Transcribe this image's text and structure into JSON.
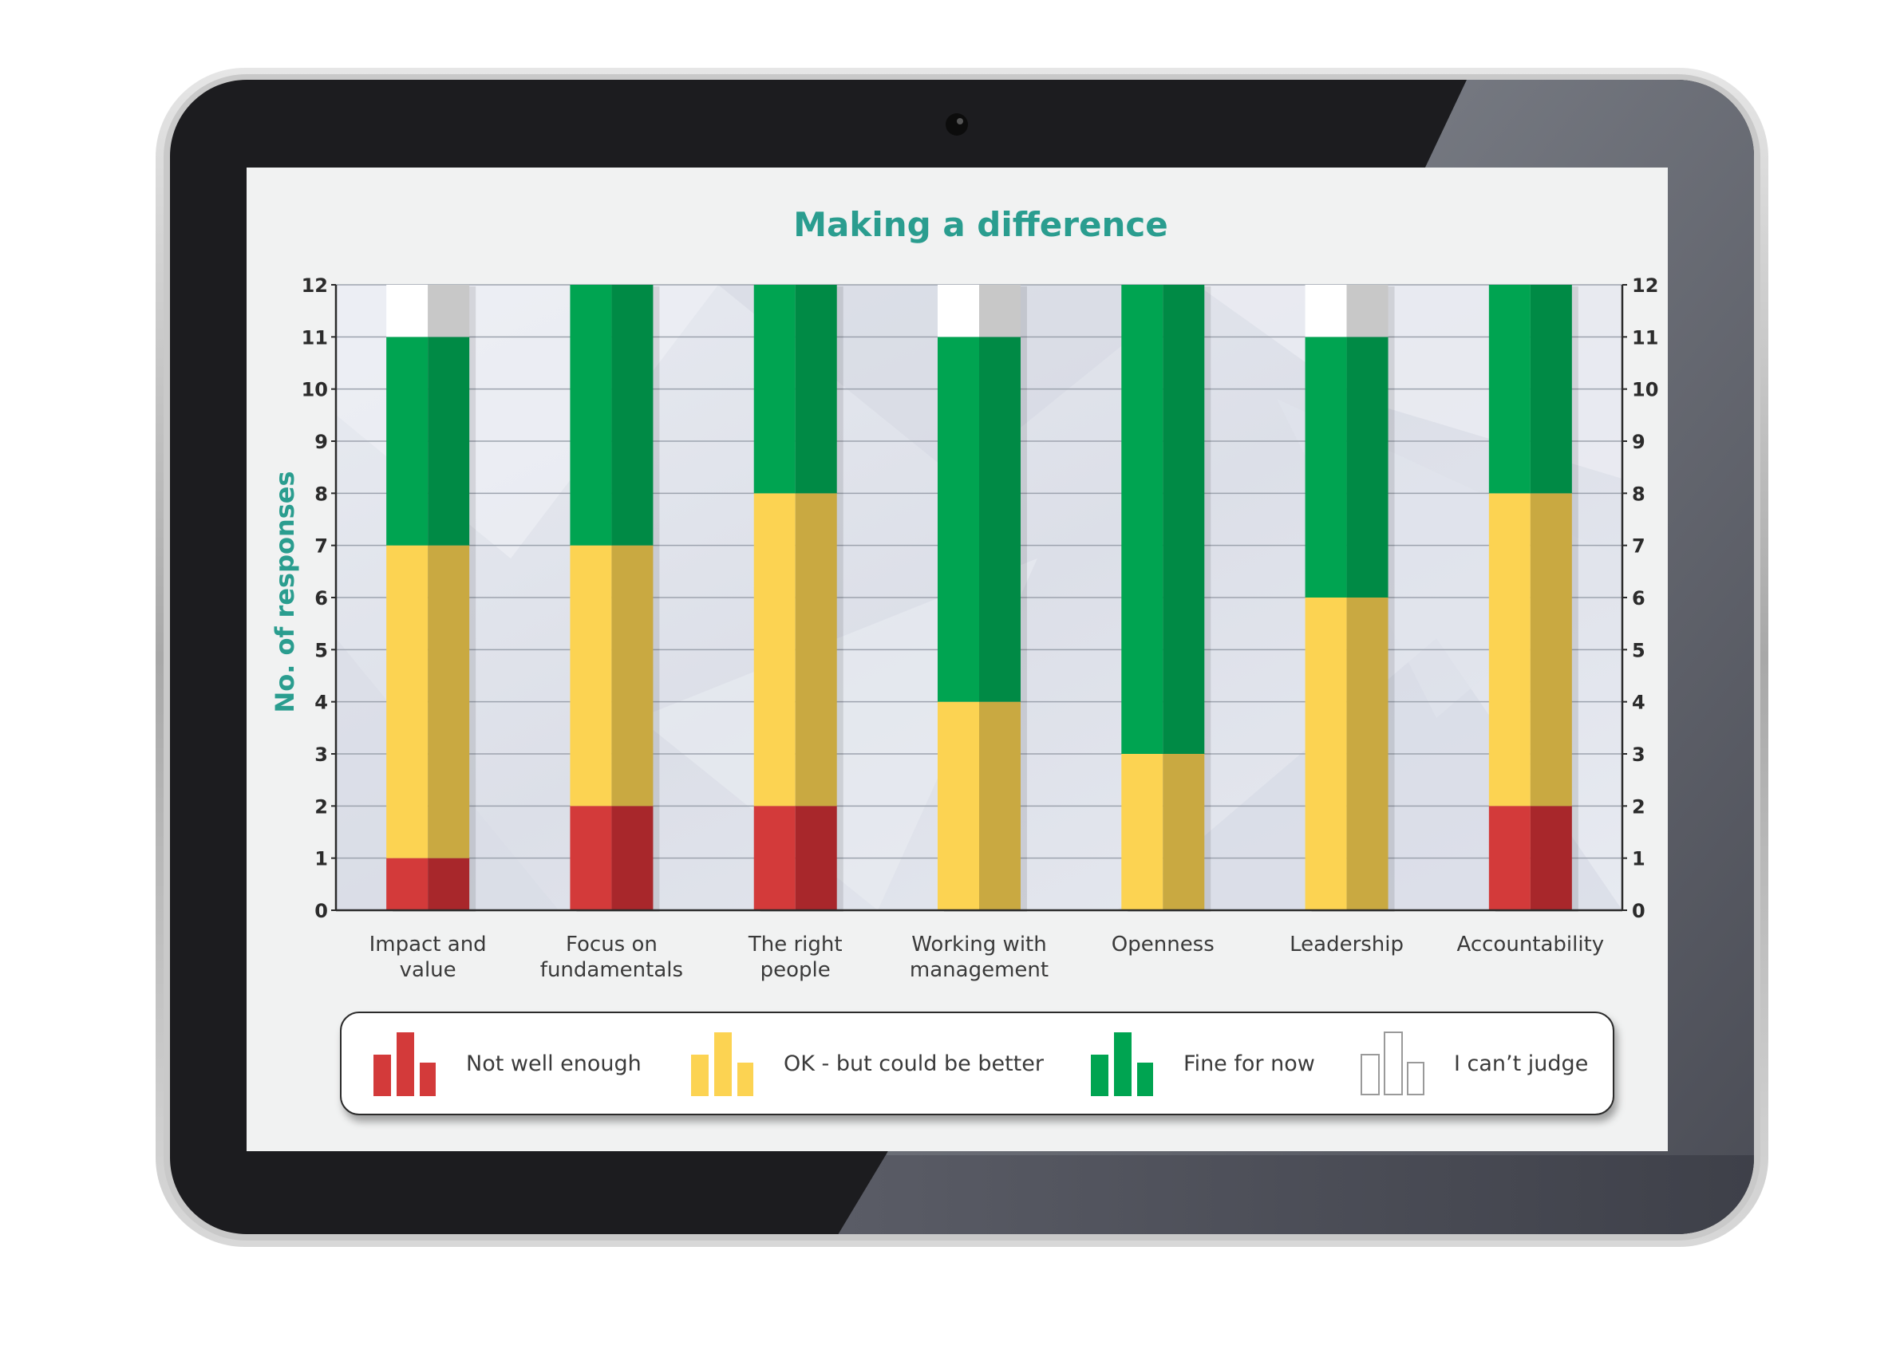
{
  "chart_data": {
    "type": "bar",
    "stacked": true,
    "title": "Making a difference",
    "ylabel": "No. of responses",
    "xlabel": "",
    "ylim": [
      0,
      12
    ],
    "yticks": [
      "0",
      "1",
      "2",
      "3",
      "4",
      "5",
      "6",
      "7",
      "8",
      "9",
      "10",
      "11",
      "12"
    ],
    "categories": [
      [
        "Impact and",
        "value"
      ],
      [
        "Focus on",
        "fundamentals"
      ],
      [
        "The right",
        "people"
      ],
      [
        "Working with",
        "management"
      ],
      [
        "Openness"
      ],
      [
        "Leadership"
      ],
      [
        "Accountability"
      ]
    ],
    "series": [
      {
        "name": "Not well enough",
        "values": [
          1,
          2,
          2,
          0,
          0,
          0,
          2
        ],
        "color": "#d33a3a",
        "shade": "#a8272b"
      },
      {
        "name": "OK - but could be better",
        "values": [
          6,
          5,
          6,
          4,
          3,
          6,
          6
        ],
        "color": "#fcd352",
        "shade": "#c9a941"
      },
      {
        "name": "Fine for now",
        "values": [
          4,
          5,
          4,
          7,
          9,
          5,
          4
        ],
        "color": "#00a451",
        "shade": "#008a45"
      },
      {
        "name": "I can’t judge",
        "values": [
          1,
          0,
          0,
          1,
          0,
          1,
          0
        ],
        "color": "#ffffff",
        "shade": "#c8c8c8"
      }
    ],
    "legend_position": "bottom",
    "grid": true,
    "right_axis": true,
    "colors": {
      "title": "#2a9d8f",
      "axis_text": "#2b2b2b",
      "gridline": "#9da3ae"
    }
  }
}
